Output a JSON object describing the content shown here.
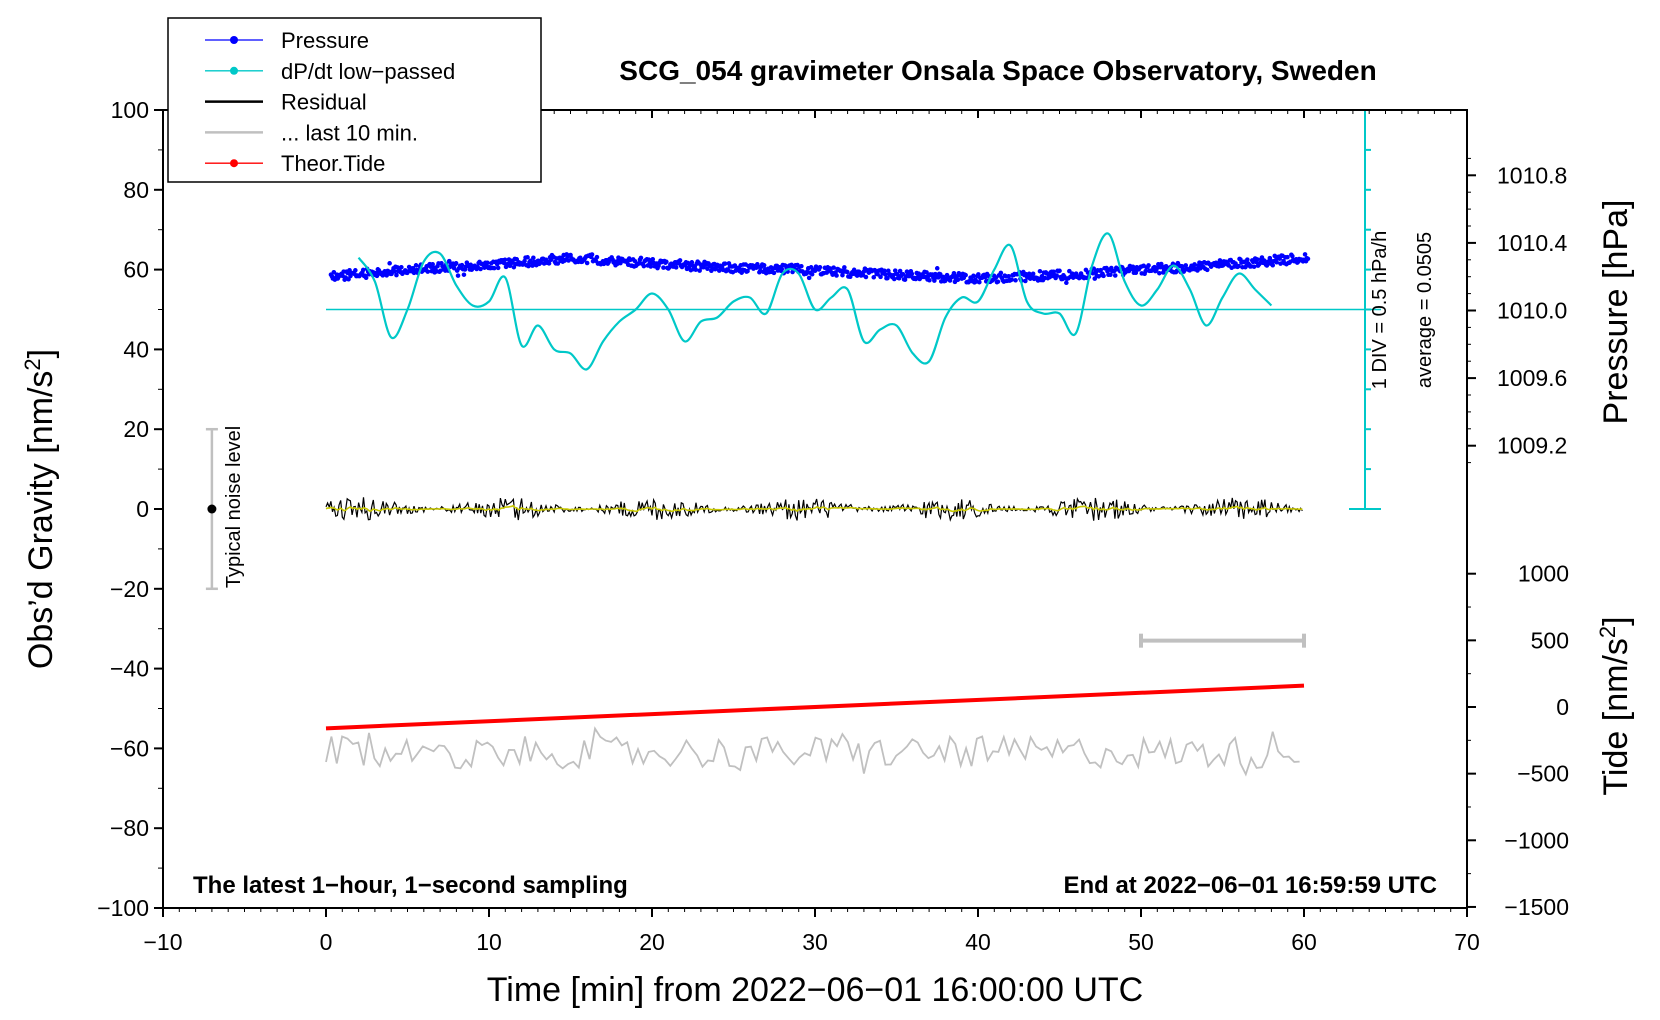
{
  "chart_data": {
    "type": "line",
    "title": "SCG_054 gravimeter Onsala Space Observatory, Sweden",
    "xlabel": "Time [min] from 2022−06−01 16:00:00 UTC",
    "ylabel_left": "Obs’d Gravity [nm/s²]",
    "ylabel_right_top": "Pressure [hPa]",
    "ylabel_right_bottom": "Tide [nm/s²]",
    "xlim": [
      -10,
      70
    ],
    "ylim": [
      -100,
      100
    ],
    "xticks": [
      -10,
      0,
      10,
      20,
      30,
      40,
      50,
      60,
      70
    ],
    "xtick_labels": [
      "−10",
      "0",
      "10",
      "20",
      "30",
      "40",
      "50",
      "60",
      "70"
    ],
    "yticks": [
      -100,
      -80,
      -60,
      -40,
      -20,
      0,
      20,
      40,
      60,
      80,
      100
    ],
    "ytick_labels": [
      "−100",
      "−80",
      "−60",
      "−40",
      "−20",
      "0",
      "20",
      "40",
      "60",
      "80",
      "100"
    ],
    "pressure_axis": {
      "ticks": [
        1009.2,
        1009.6,
        1010.0,
        1010.4,
        1010.8
      ],
      "tick_labels": [
        "1009.2",
        "1009.6",
        "1010.0",
        "1010.4",
        "1010.8"
      ]
    },
    "tide_axis": {
      "ticks": [
        -1500,
        -1000,
        -500,
        0,
        500,
        1000
      ],
      "tick_labels": [
        "−1500",
        "−1000",
        "−500",
        "0",
        "500",
        "1000"
      ]
    },
    "legend": [
      {
        "label": "Pressure",
        "color": "#0000ff",
        "marker": "dot"
      },
      {
        "label": "dP/dt low−passed",
        "color": "#00c8c8",
        "marker": "dot"
      },
      {
        "label": "Residual",
        "color": "#000000",
        "marker": "line"
      },
      {
        "label": "... last 10 min.",
        "color": "#c0c0c0",
        "marker": "line"
      },
      {
        "label": "Theor.Tide",
        "color": "#ff0000",
        "marker": "dot"
      }
    ],
    "legend_location": "top-left",
    "series": [
      {
        "name": "Pressure",
        "unit": "hPa",
        "color": "#0000ff",
        "x": [
          0,
          5,
          10,
          15,
          20,
          25,
          30,
          35,
          40,
          45,
          50,
          55,
          60
        ],
        "y": [
          1010.2,
          1010.24,
          1010.27,
          1010.31,
          1010.28,
          1010.25,
          1010.24,
          1010.21,
          1010.19,
          1010.21,
          1010.24,
          1010.27,
          1010.31
        ]
      },
      {
        "name": "dP/dt low−passed",
        "color": "#00c8c8",
        "x": [
          2,
          3,
          4,
          5,
          6,
          7,
          8,
          9,
          10,
          11,
          12,
          13,
          14,
          15,
          16,
          17,
          18,
          19,
          20,
          21,
          22,
          23,
          24,
          25,
          26,
          27,
          28,
          29,
          30,
          31,
          32,
          33,
          34,
          35,
          36,
          37,
          38,
          39,
          40,
          41,
          42,
          43,
          44,
          45,
          46,
          47,
          48,
          49,
          50,
          51,
          52,
          53,
          54,
          55,
          56,
          57,
          58
        ],
        "y": [
          63,
          57,
          43,
          50,
          62,
          64,
          56,
          51,
          52,
          58,
          41,
          46,
          40,
          39,
          35,
          42,
          47,
          50,
          54,
          50,
          42,
          47,
          48,
          52,
          53,
          49,
          59,
          59,
          50,
          53,
          55,
          42,
          45,
          46,
          39,
          37,
          48,
          53,
          52,
          60,
          66,
          52,
          49,
          49,
          44,
          61,
          69,
          57,
          51,
          55,
          61,
          55,
          46,
          53,
          59,
          55,
          51
        ]
      },
      {
        "name": "Residual",
        "color": "#000000",
        "x": [
          0,
          60
        ],
        "y": [
          0,
          0
        ],
        "amplitude": 3
      },
      {
        "name": "... last 10 min.",
        "color": "#c0c0c0",
        "x": [
          0,
          60
        ],
        "y": [
          -61,
          -61
        ],
        "amplitude": 4
      },
      {
        "name": "Theor.Tide",
        "unit": "nm/s²",
        "color": "#ff0000",
        "x": [
          0,
          60
        ],
        "y": [
          -160,
          160
        ]
      }
    ],
    "annotations": {
      "noise_label": "Typical noise level",
      "noise_range": [
        -20,
        20
      ],
      "noise_x": -7,
      "div_label": "1 DIV = 0.5 hPa/h",
      "average_label": "average = 0.0505",
      "bottom_left": "The latest 1−hour, 1−second sampling",
      "bottom_right": "End at 2022−06−01 16:59:59 UTC",
      "last10_bar": [
        50,
        60
      ],
      "last10_bar_level": -33
    }
  }
}
